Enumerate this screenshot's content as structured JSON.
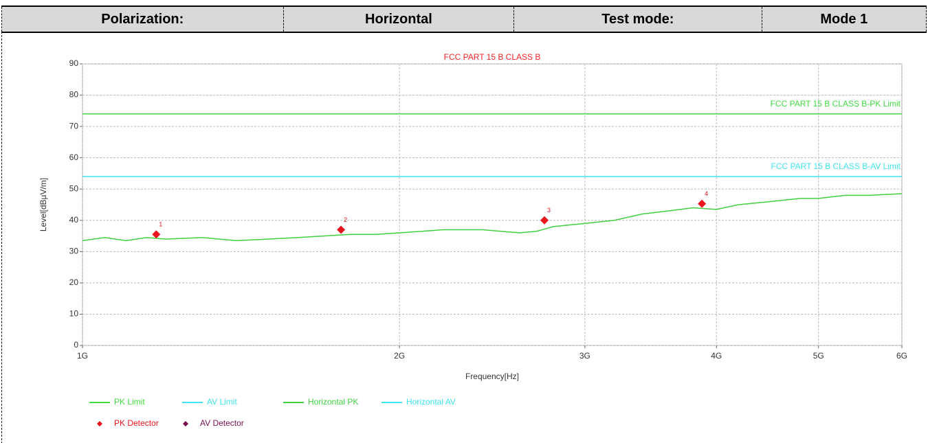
{
  "header": {
    "cells": [
      "Polarization:",
      "Horizontal",
      "Test mode:",
      "Mode 1"
    ]
  },
  "chart_data": {
    "type": "line",
    "title": "FCC PART 15 B CLASS B",
    "x_label": "Frequency[Hz]",
    "y_label": "Level[dBµV/m]",
    "x_scale": "log",
    "grid": true,
    "xlim": [
      1000000000,
      6000000000
    ],
    "xticks": [
      {
        "value": 1000000000,
        "label": "1G"
      },
      {
        "value": 2000000000,
        "label": "2G"
      },
      {
        "value": 3000000000,
        "label": "3G"
      },
      {
        "value": 4000000000,
        "label": "4G"
      },
      {
        "value": 5000000000,
        "label": "5G"
      },
      {
        "value": 6000000000,
        "label": "6G"
      }
    ],
    "ylim": [
      0,
      90
    ],
    "yticks": [
      0,
      10,
      20,
      30,
      40,
      50,
      60,
      70,
      80,
      90
    ],
    "annotations": [
      {
        "text": "FCC PART 15 B CLASS B-PK Limit",
        "y": 74,
        "color": "#3fdc3f"
      },
      {
        "text": "FCC PART 15 B CLASS B-AV Limit",
        "y": 54,
        "color": "#3fe3ee"
      }
    ],
    "series": [
      {
        "name": "PK Limit",
        "color": "#3fdc3f",
        "style": "line",
        "x": [
          1000000000,
          6000000000
        ],
        "values": [
          74,
          74
        ]
      },
      {
        "name": "AV Limit",
        "color": "#3fe3ee",
        "style": "line",
        "x": [
          1000000000,
          6000000000
        ],
        "values": [
          54,
          54
        ]
      },
      {
        "name": "Horizontal PK",
        "color": "#3fd13f",
        "style": "line",
        "x": [
          1000000000,
          1050000000,
          1100000000,
          1150000000,
          1200000000,
          1300000000,
          1400000000,
          1500000000,
          1600000000,
          1700000000,
          1800000000,
          1900000000,
          2000000000,
          2100000000,
          2200000000,
          2400000000,
          2600000000,
          2700000000,
          2800000000,
          3000000000,
          3200000000,
          3400000000,
          3600000000,
          3800000000,
          4000000000,
          4200000000,
          4500000000,
          4800000000,
          5000000000,
          5300000000,
          5600000000,
          6000000000
        ],
        "values": [
          33.5,
          34.5,
          33.5,
          34.5,
          34,
          34.5,
          33.5,
          34,
          34.5,
          35,
          35.5,
          35.5,
          36,
          36.5,
          37,
          37,
          36,
          36.5,
          38,
          39,
          40,
          42,
          43,
          44,
          43.5,
          45,
          46,
          47,
          47,
          48,
          48,
          48.5
        ]
      },
      {
        "name": "Horizontal AV",
        "color": "#3fe3ee",
        "style": "line",
        "x": [],
        "values": []
      },
      {
        "name": "PK Detector",
        "color": "#e8141e",
        "style": "markers",
        "x": [
          1175000000,
          1760000000,
          2746000000,
          3875000000
        ],
        "values": [
          35.5,
          37,
          40,
          45.3
        ],
        "point_labels": [
          "1",
          "2",
          "3",
          "4"
        ]
      },
      {
        "name": "AV Detector",
        "color": "#7a1050",
        "style": "markers",
        "x": [],
        "values": []
      }
    ]
  }
}
